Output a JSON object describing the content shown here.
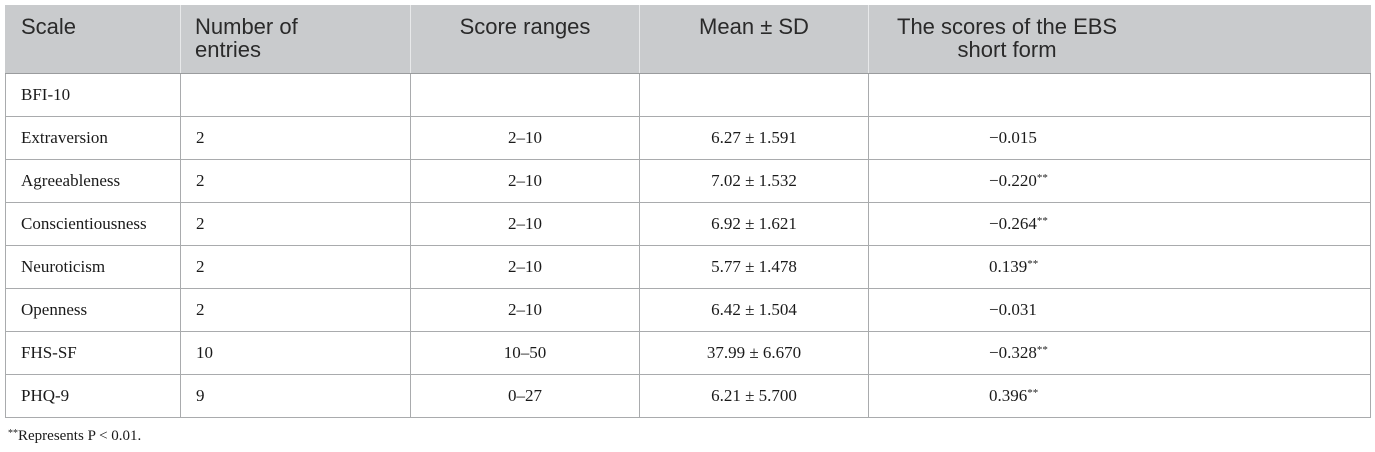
{
  "table": {
    "headers": [
      "Scale",
      "Number of entries",
      "Score ranges",
      "Mean ± SD",
      "The scores of the EBS short form"
    ],
    "header_lines": {
      "h2_line1": "Number of",
      "h2_line2": "entries",
      "h5_line1": "The scores of the EBS",
      "h5_line2": "short form"
    },
    "rows": [
      {
        "scale": "BFI-10",
        "entries": "",
        "range": "",
        "mean_sd": "",
        "corr": "",
        "sig": ""
      },
      {
        "scale": "Extraversion",
        "entries": "2",
        "range": "2–10",
        "mean_sd": "6.27 ± 1.591",
        "corr": "−0.015",
        "sig": ""
      },
      {
        "scale": "Agreeableness",
        "entries": "2",
        "range": "2–10",
        "mean_sd": "7.02 ± 1.532",
        "corr": "−0.220",
        "sig": "**"
      },
      {
        "scale": "Conscientiousness",
        "entries": "2",
        "range": "2–10",
        "mean_sd": "6.92 ± 1.621",
        "corr": "−0.264",
        "sig": "**"
      },
      {
        "scale": "Neuroticism",
        "entries": "2",
        "range": "2–10",
        "mean_sd": "5.77 ± 1.478",
        "corr": "0.139",
        "sig": "**"
      },
      {
        "scale": "Openness",
        "entries": "2",
        "range": "2–10",
        "mean_sd": "6.42 ± 1.504",
        "corr": "−0.031",
        "sig": ""
      },
      {
        "scale": "FHS-SF",
        "entries": "10",
        "range": "10–50",
        "mean_sd": "37.99 ± 6.670",
        "corr": "−0.328",
        "sig": "**"
      },
      {
        "scale": "PHQ-9",
        "entries": "9",
        "range": "0–27",
        "mean_sd": "6.21 ± 5.700",
        "corr": "0.396",
        "sig": "**"
      }
    ]
  },
  "footnote": {
    "marker": "**",
    "text": "Represents P < 0.01."
  },
  "colors": {
    "header_bg": "#c9cbcd",
    "border": "#a9abad",
    "text": "#1a1a1a"
  }
}
